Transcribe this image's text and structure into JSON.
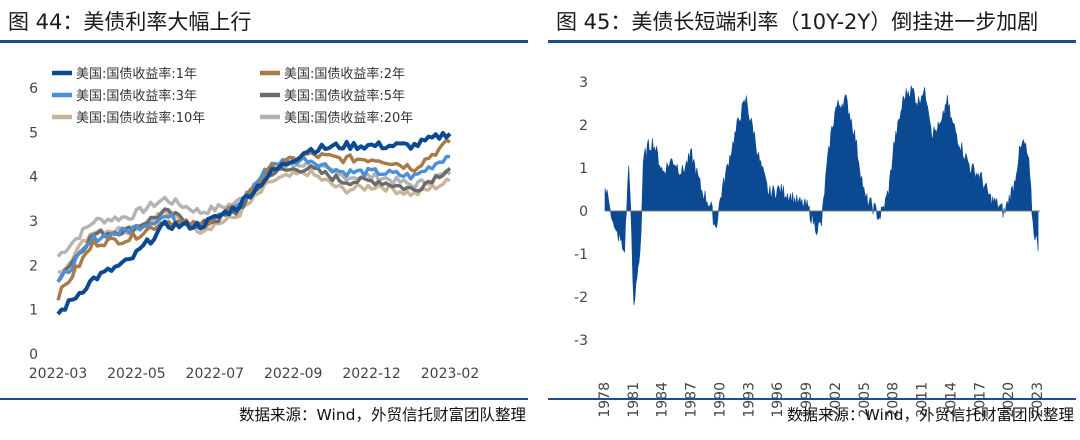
{
  "left": {
    "title": "图 44：美债利率大幅上行",
    "source": "数据来源：Wind，外贸信托财富团队整理",
    "chart_data": {
      "type": "line",
      "title": "美债利率大幅上行",
      "xlabel": "",
      "ylabel": "",
      "ylim": [
        0,
        6
      ],
      "yticks": [
        "0",
        "1",
        "2",
        "3",
        "4",
        "5",
        "6"
      ],
      "xticks": [
        "2022-03",
        "2022-05",
        "2022-07",
        "2022-09",
        "2022-12",
        "2023-02"
      ],
      "x": [
        "2022-03",
        "2022-04",
        "2022-05",
        "2022-06",
        "2022-07",
        "2022-08",
        "2022-09",
        "2022-10",
        "2022-11",
        "2022-12",
        "2023-01",
        "2023-02"
      ],
      "series": [
        {
          "name": "美国:国债收益率:1年",
          "color": "#0b4a93",
          "values": [
            0.9,
            1.7,
            2.1,
            2.9,
            2.9,
            3.3,
            4.1,
            4.6,
            4.7,
            4.7,
            4.7,
            5.0
          ]
        },
        {
          "name": "美国:国债收益率:2年",
          "color": "#a87a48",
          "values": [
            1.3,
            2.5,
            2.6,
            3.0,
            2.9,
            3.3,
            4.2,
            4.5,
            4.4,
            4.4,
            4.2,
            4.8
          ]
        },
        {
          "name": "美国:国债收益率:3年",
          "color": "#4d8fd6",
          "values": [
            1.6,
            2.6,
            2.8,
            3.1,
            2.9,
            3.3,
            4.3,
            4.4,
            4.1,
            4.1,
            4.0,
            4.5
          ]
        },
        {
          "name": "美国:国债收益率:5年",
          "color": "#6b6b6b",
          "values": [
            1.7,
            2.7,
            2.8,
            3.2,
            2.9,
            3.2,
            4.1,
            4.2,
            3.9,
            3.9,
            3.7,
            4.2
          ]
        },
        {
          "name": "美国:国债收益率:10年",
          "color": "#c9b49a",
          "values": [
            1.8,
            2.8,
            2.8,
            3.2,
            2.8,
            3.1,
            3.9,
            4.1,
            3.7,
            3.8,
            3.6,
            3.9
          ]
        },
        {
          "name": "美国:国债收益率:20年",
          "color": "#b3b3b3",
          "values": [
            2.2,
            3.0,
            3.1,
            3.5,
            3.2,
            3.4,
            4.2,
            4.3,
            4.0,
            4.0,
            3.8,
            4.1
          ]
        }
      ]
    }
  },
  "right": {
    "title": "图 45：美债长短端利率（10Y-2Y）倒挂进一步加剧",
    "source": "数据来源：Wind，外贸信托财富团队整理",
    "chart_data": {
      "type": "area",
      "title": "美债长短端利率（10Y-2Y）倒挂进一步加剧",
      "xlabel": "",
      "ylabel": "",
      "ylim": [
        -3,
        3
      ],
      "yticks": [
        "3",
        "2",
        "1",
        "0",
        "-1",
        "-2",
        "-3"
      ],
      "xticks": [
        "1978",
        "1981",
        "1984",
        "1987",
        "1990",
        "1993",
        "1996",
        "1999",
        "2002",
        "2005",
        "2008",
        "2011",
        "2014",
        "2017",
        "2020",
        "2023"
      ],
      "color": "#0b4a93",
      "x": [
        1978.0,
        1978.5,
        1979.0,
        1979.5,
        1980.0,
        1980.5,
        1981.0,
        1981.3,
        1981.7,
        1982.0,
        1982.5,
        1983.0,
        1984.0,
        1985.0,
        1986.0,
        1987.0,
        1988.0,
        1989.0,
        1989.5,
        1990.0,
        1990.5,
        1991.0,
        1992.0,
        1992.7,
        1993.0,
        1993.5,
        1994.0,
        1995.0,
        1996.0,
        1997.0,
        1998.0,
        1999.0,
        2000.0,
        2000.5,
        2001.0,
        2001.5,
        2002.0,
        2002.5,
        2003.0,
        2003.5,
        2004.0,
        2004.5,
        2005.0,
        2006.0,
        2006.5,
        2007.0,
        2007.5,
        2008.0,
        2008.5,
        2009.0,
        2009.5,
        2010.0,
        2010.5,
        2011.0,
        2011.5,
        2012.0,
        2013.0,
        2013.5,
        2014.0,
        2015.0,
        2016.0,
        2017.0,
        2018.0,
        2018.5,
        2019.0,
        2019.5,
        2020.0,
        2020.5,
        2021.0,
        2021.5,
        2022.0,
        2022.5,
        2023.0
      ],
      "values": [
        0.5,
        0.2,
        -0.5,
        -0.6,
        -1.0,
        1.2,
        -2.3,
        -1.5,
        -0.8,
        1.2,
        1.5,
        1.6,
        0.9,
        1.2,
        0.9,
        1.3,
        0.5,
        0.1,
        -0.4,
        0.3,
        0.8,
        1.3,
        2.2,
        2.6,
        2.2,
        1.8,
        1.2,
        0.4,
        0.5,
        0.4,
        0.2,
        0.1,
        -0.4,
        -0.3,
        0.9,
        1.8,
        2.4,
        2.5,
        2.6,
        2.2,
        1.7,
        1.0,
        0.3,
        0.05,
        -0.15,
        0.1,
        0.5,
        1.5,
        2.0,
        2.6,
        2.8,
        2.8,
        2.5,
        2.8,
        2.6,
        1.8,
        2.0,
        2.6,
        2.1,
        1.5,
        1.0,
        0.8,
        0.3,
        0.2,
        0.1,
        -0.05,
        0.3,
        0.6,
        1.3,
        1.6,
        1.2,
        -0.4,
        -0.8
      ]
    }
  }
}
